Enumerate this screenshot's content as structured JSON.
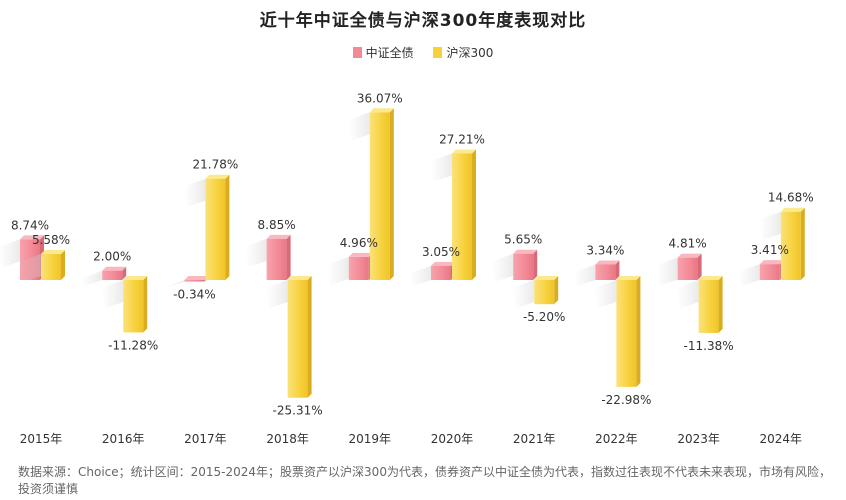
{
  "chart_data": {
    "type": "bar",
    "title": "近十年中证全债与沪深300年度表现对比",
    "categories": [
      "2015年",
      "2016年",
      "2017年",
      "2018年",
      "2019年",
      "2020年",
      "2021年",
      "2022年",
      "2023年",
      "2024年"
    ],
    "series": [
      {
        "name": "中证全债",
        "color": "#f28a96",
        "values": [
          8.74,
          2.0,
          -0.34,
          8.85,
          4.96,
          3.05,
          5.65,
          3.34,
          4.81,
          3.41
        ],
        "labels": [
          "8.74%",
          "2.00%",
          "-0.34%",
          "8.85%",
          "4.96%",
          "3.05%",
          "5.65%",
          "3.34%",
          "4.81%",
          "3.41%"
        ]
      },
      {
        "name": "沪深300",
        "color": "#f7d13c",
        "values": [
          5.58,
          -11.28,
          21.78,
          -25.31,
          36.07,
          27.21,
          -5.2,
          -22.98,
          -11.38,
          14.68
        ],
        "labels": [
          "5.58%",
          "-11.28%",
          "21.78%",
          "-25.31%",
          "36.07%",
          "27.21%",
          "-5.20%",
          "-22.98%",
          "-11.38%",
          "14.68%"
        ]
      }
    ],
    "xlabel": "",
    "ylabel": "",
    "ylim": [
      -30,
      40
    ],
    "grid": false,
    "legend_position": "top-center"
  },
  "footnote": "数据来源：Choice；统计区间：2015-2024年；股票资产以沪深300为代表，债券资产以中证全债为代表，指数过往表现不代表未来表现，市场有风险，投资须谨慎"
}
